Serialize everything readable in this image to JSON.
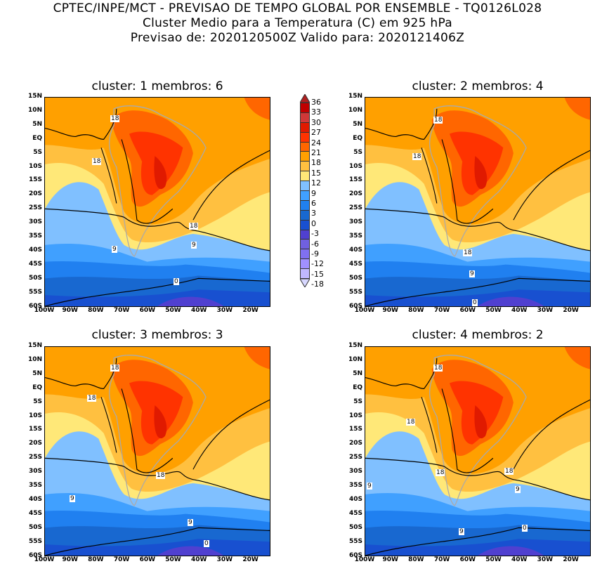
{
  "header": {
    "line1": "CPTEC/INPE/MCT - PREVISAO DE TEMPO GLOBAL POR ENSEMBLE - TQ0126L028",
    "line2": "Cluster Medio para a Temperatura (C) em 925 hPa",
    "line3": "Previsao de: 2020120500Z   Valido para: 2020121406Z"
  },
  "panels": [
    {
      "title": "cluster: 1   membros: 6",
      "contours": [
        "18",
        "18",
        "18",
        "9",
        "9",
        "0"
      ]
    },
    {
      "title": "cluster: 2   membros: 4",
      "contours": [
        "18",
        "18",
        "18",
        "9",
        "0"
      ]
    },
    {
      "title": "cluster: 3   membros: 3",
      "contours": [
        "18",
        "18",
        "18",
        "9",
        "9",
        "0"
      ]
    },
    {
      "title": "cluster: 4   membros: 2",
      "contours": [
        "18",
        "18",
        "18",
        "18",
        "9",
        "9",
        "9",
        "0"
      ]
    }
  ],
  "axes": {
    "lat": [
      "15N",
      "10N",
      "5N",
      "EQ",
      "5S",
      "10S",
      "15S",
      "20S",
      "25S",
      "30S",
      "35S",
      "40S",
      "45S",
      "50S",
      "55S",
      "60S"
    ],
    "lon": [
      "100W",
      "90W",
      "80W",
      "70W",
      "60W",
      "50W",
      "40W",
      "30W",
      "20W"
    ]
  },
  "colorbar": {
    "levels": [
      "36",
      "33",
      "30",
      "27",
      "24",
      "21",
      "18",
      "15",
      "12",
      "9",
      "6",
      "3",
      "0",
      "-3",
      "-6",
      "-9",
      "-12",
      "-15",
      "-18"
    ],
    "colors": [
      "#c00000",
      "#d03838",
      "#e01a00",
      "#ff3300",
      "#ff6600",
      "#ffa000",
      "#ffc040",
      "#ffe878",
      "#80c0ff",
      "#40a0ff",
      "#2080f0",
      "#1868d0",
      "#1850d0",
      "#5040d0",
      "#7060e0",
      "#8070f0",
      "#a090ff",
      "#c0b8ff"
    ],
    "top_arrow": "#b02020",
    "bottom_arrow": "#d8d8ff"
  }
}
